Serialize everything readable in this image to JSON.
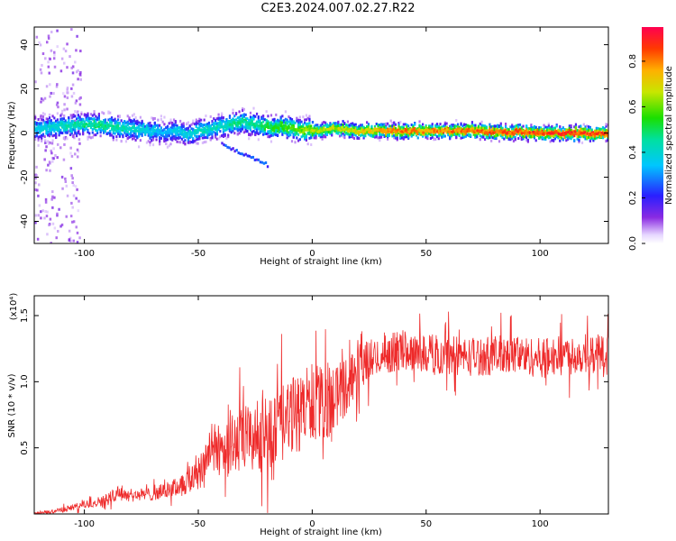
{
  "page": {
    "title": "C2E3.2024.007.02.27.R22"
  },
  "colorbar": {
    "label": "Normalized spectral amplitude",
    "ticks": [
      "0.0",
      "0.2",
      "0.4",
      "0.6",
      "0.8"
    ]
  },
  "chart_data": [
    {
      "type": "heatmap",
      "title": "C2E3.2024.007.02.27.R22",
      "xlabel": "Height of straight line (km)",
      "ylabel": "Frequency (Hz)",
      "xlim": [
        -122,
        130
      ],
      "ylim": [
        -50,
        48
      ],
      "xticks": [
        "-100",
        "-50",
        "0",
        "50",
        "100"
      ],
      "yticks": [
        "-40",
        "-20",
        "0",
        "20",
        "40"
      ],
      "colorscale": "rainbow (0 = light purple/white, 1 = red)",
      "zlim": [
        0.0,
        0.95
      ],
      "ridge": {
        "description": "Dominant spectral peak frequency vs height",
        "x": [
          -122,
          -110,
          -100,
          -90,
          -80,
          -70,
          -65,
          -60,
          -55,
          -50,
          -45,
          -40,
          -35,
          -30,
          -25,
          -20,
          -10,
          0,
          10,
          20,
          30,
          40,
          50,
          60,
          70,
          80,
          90,
          100,
          110,
          120,
          130
        ],
        "frequency": [
          2,
          3,
          4,
          3,
          2,
          1,
          0,
          1,
          -1,
          1,
          2,
          3,
          4,
          5,
          4,
          3,
          2,
          1,
          2,
          1,
          1,
          1,
          1,
          1,
          1,
          0.5,
          0.5,
          0,
          0,
          0,
          0
        ],
        "amplitude": [
          0.4,
          0.45,
          0.5,
          0.5,
          0.45,
          0.4,
          0.35,
          0.4,
          0.4,
          0.45,
          0.45,
          0.45,
          0.5,
          0.5,
          0.5,
          0.55,
          0.6,
          0.7,
          0.7,
          0.75,
          0.8,
          0.85,
          0.85,
          0.85,
          0.88,
          0.9,
          0.9,
          0.92,
          0.92,
          0.92,
          0.92
        ]
      },
      "secondary_branch": {
        "x": [
          -40,
          -35,
          -30,
          -25,
          -20
        ],
        "frequency": [
          -4,
          -7,
          -9,
          -11,
          -14
        ]
      }
    },
    {
      "type": "line",
      "xlabel": "Height of straight line (km)",
      "ylabel": "SNR (10 * v/v)",
      "y_multiplier": "(x10⁴)",
      "xlim": [
        -122,
        130
      ],
      "ylim": [
        0,
        1.65
      ],
      "xticks": [
        "-100",
        "-50",
        "0",
        "50",
        "100"
      ],
      "yticks": [
        "0.5",
        "1.0",
        "1.5"
      ],
      "series": [
        {
          "color": "#ee2a2a",
          "x": [
            -122,
            -110,
            -100,
            -90,
            -85,
            -80,
            -70,
            -60,
            -55,
            -50,
            -45,
            -40,
            -35,
            -30,
            -25,
            -20,
            -15,
            -10,
            -5,
            0,
            5,
            10,
            15,
            20,
            25,
            30,
            35,
            40,
            50,
            60,
            70,
            80,
            90,
            100,
            110,
            120,
            130
          ],
          "values": [
            0.0,
            0.03,
            0.07,
            0.11,
            0.17,
            0.14,
            0.15,
            0.2,
            0.24,
            0.32,
            0.48,
            0.5,
            0.52,
            0.56,
            0.58,
            0.6,
            0.65,
            0.72,
            0.78,
            0.85,
            0.82,
            0.88,
            0.97,
            1.1,
            1.16,
            1.2,
            1.22,
            1.24,
            1.22,
            1.2,
            1.19,
            1.2,
            1.2,
            1.18,
            1.2,
            1.21,
            1.2
          ],
          "noise_amplitude": [
            0.01,
            0.02,
            0.03,
            0.04,
            0.06,
            0.05,
            0.05,
            0.07,
            0.1,
            0.15,
            0.2,
            0.22,
            0.24,
            0.26,
            0.27,
            0.28,
            0.3,
            0.3,
            0.3,
            0.3,
            0.28,
            0.25,
            0.22,
            0.18,
            0.16,
            0.15,
            0.15,
            0.15,
            0.15,
            0.15,
            0.15,
            0.15,
            0.15,
            0.15,
            0.15,
            0.15,
            0.15
          ]
        }
      ]
    }
  ]
}
